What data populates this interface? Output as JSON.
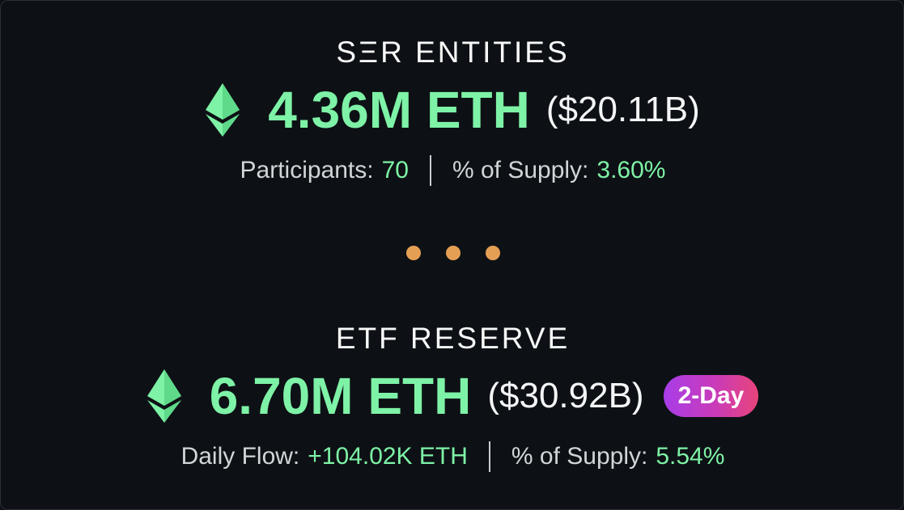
{
  "colors": {
    "background": "#0d1115",
    "accent_green": "#7ef2a6",
    "dot_orange": "#e59f55",
    "badge_gradient_start": "#a83de8",
    "badge_gradient_end": "#e8447a"
  },
  "ser_entities": {
    "title": "SΞR ENTITIES",
    "icon": "ethereum-icon",
    "amount": "4.36M ETH",
    "usd_value": "($20.11B)",
    "stats": {
      "participants_label": "Participants:",
      "participants_value": "70",
      "supply_label": "% of Supply:",
      "supply_value": "3.60%"
    }
  },
  "separator": {
    "icon": "ellipsis-dots"
  },
  "etf_reserve": {
    "title": "ETF RESERVE",
    "icon": "ethereum-icon",
    "amount": "6.70M ETH",
    "usd_value": "($30.92B)",
    "badge": "2-Day",
    "stats": {
      "flow_label": "Daily Flow:",
      "flow_value": "+104.02K ETH",
      "supply_label": "% of Supply:",
      "supply_value": "5.54%"
    }
  }
}
